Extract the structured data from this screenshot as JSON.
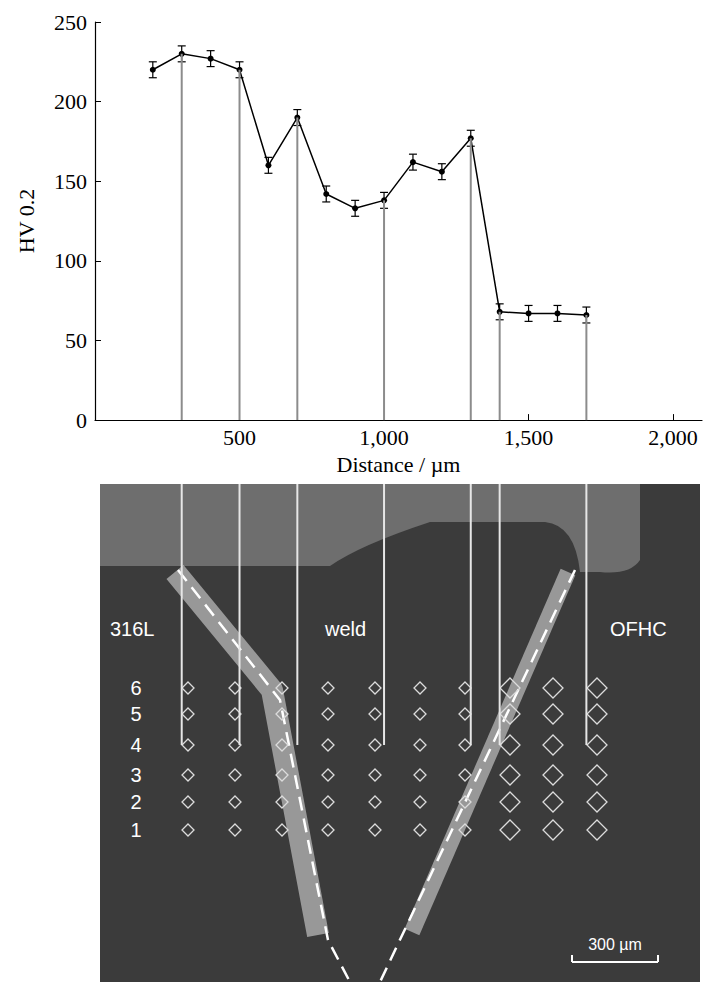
{
  "chart_data": {
    "type": "line",
    "x_label": "Distance / µm",
    "y_label": "HV 0.2",
    "x": [
      200,
      300,
      400,
      500,
      600,
      700,
      800,
      900,
      1000,
      1100,
      1200,
      1300,
      1400,
      1500,
      1600,
      1700
    ],
    "values": [
      220,
      230,
      227,
      220,
      160,
      190,
      142,
      133,
      138,
      162,
      156,
      177,
      68,
      67,
      67,
      66
    ],
    "errors": [
      5,
      5,
      5,
      5,
      5,
      5,
      5,
      5,
      5,
      5,
      5,
      5,
      5,
      5,
      5,
      5
    ],
    "color": "#000000",
    "marker": "circle",
    "xlim": [
      0,
      2100
    ],
    "xticks": [
      500,
      1000,
      1500,
      2000
    ],
    "ylim": [
      0,
      250
    ],
    "yticks": [
      0,
      50,
      100,
      150,
      200,
      250
    ],
    "grid": false,
    "connector_x": [
      300,
      500,
      700,
      1000,
      1300,
      1400,
      1700
    ]
  },
  "micrograph": {
    "regions": [
      "316L",
      "weld",
      "OFHC"
    ],
    "rows": [
      "6",
      "5",
      "4",
      "3",
      "2",
      "1"
    ],
    "scale_bar": "300 µm"
  }
}
